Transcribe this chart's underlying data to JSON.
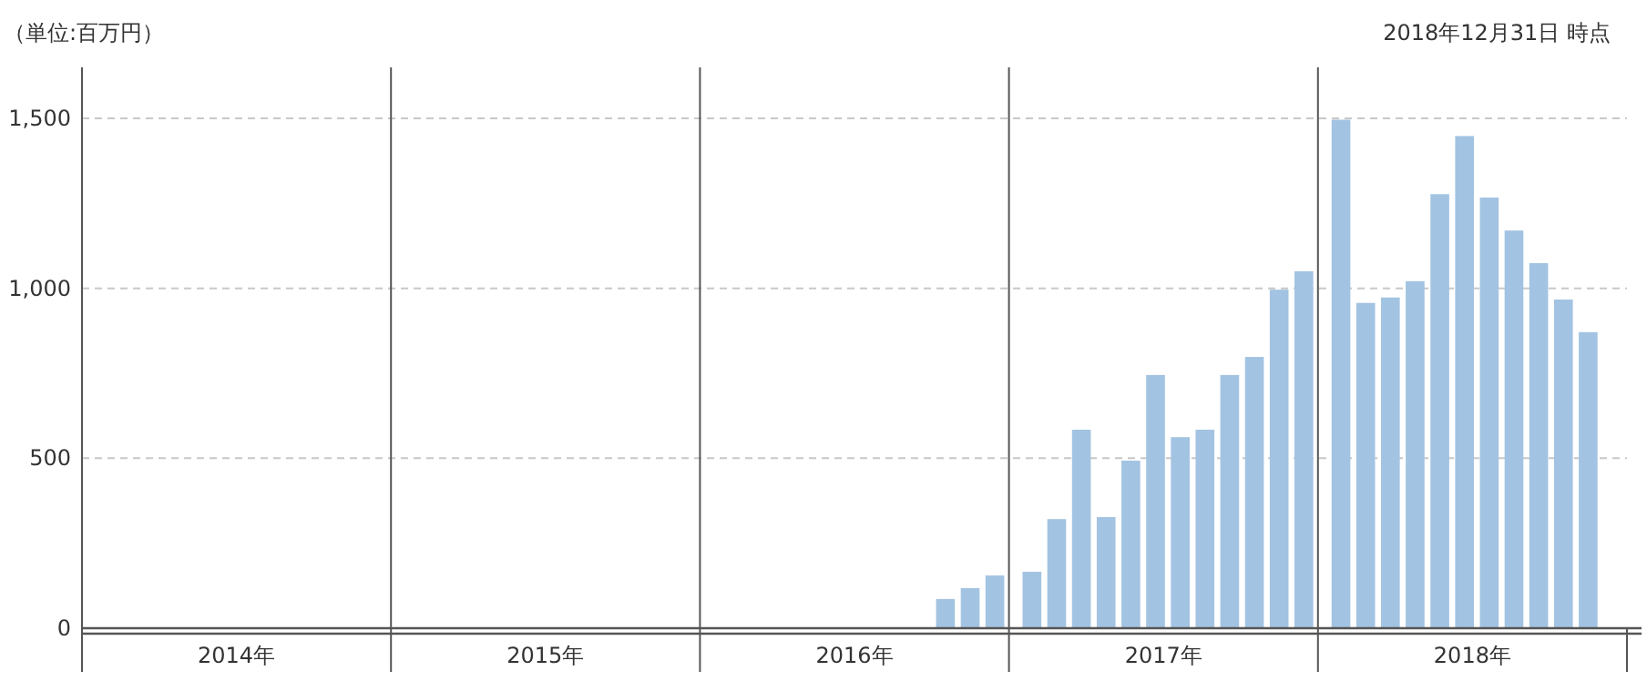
{
  "chart_data": {
    "type": "bar",
    "ylabel": "（単位:百万円）",
    "annotations": [
      "2018年12月31日 時点"
    ],
    "categories": [
      "2014年",
      "2015年",
      "2016年",
      "2017年",
      "2018年"
    ],
    "series": [
      {
        "color": "#a3c3e2",
        "values": [
          null,
          null,
          null,
          166,
          1496
        ]
      },
      {
        "color": "#a3c3e2",
        "values": [
          null,
          null,
          null,
          321,
          957
        ]
      },
      {
        "color": "#a3c3e2",
        "values": [
          null,
          null,
          null,
          584,
          973
        ]
      },
      {
        "color": "#a3c3e2",
        "values": [
          null,
          null,
          null,
          327,
          1021
        ]
      },
      {
        "color": "#a3c3e2",
        "values": [
          null,
          null,
          null,
          493,
          1277
        ]
      },
      {
        "color": "#a3c3e2",
        "values": [
          null,
          null,
          null,
          745,
          1448
        ]
      },
      {
        "color": "#a3c3e2",
        "values": [
          null,
          null,
          null,
          562,
          1267
        ]
      },
      {
        "color": "#a3c3e2",
        "values": [
          null,
          null,
          null,
          584,
          1170
        ]
      },
      {
        "color": "#a3c3e2",
        "values": [
          null,
          null,
          null,
          745,
          1074
        ]
      },
      {
        "color": "#a3c3e2",
        "values": [
          null,
          null,
          86,
          798,
          967
        ]
      },
      {
        "color": "#a3c3e2",
        "values": [
          null,
          null,
          118,
          996,
          871
        ]
      },
      {
        "color": "#a3c3e2",
        "values": [
          null,
          null,
          155,
          1050,
          null
        ]
      }
    ],
    "ylim": [
      0,
      1650
    ],
    "yticks": [
      0,
      500,
      {
        "value": 1000,
        "label": "1,000"
      },
      {
        "value": 1500,
        "label": "1,500"
      }
    ],
    "grid": "y"
  }
}
